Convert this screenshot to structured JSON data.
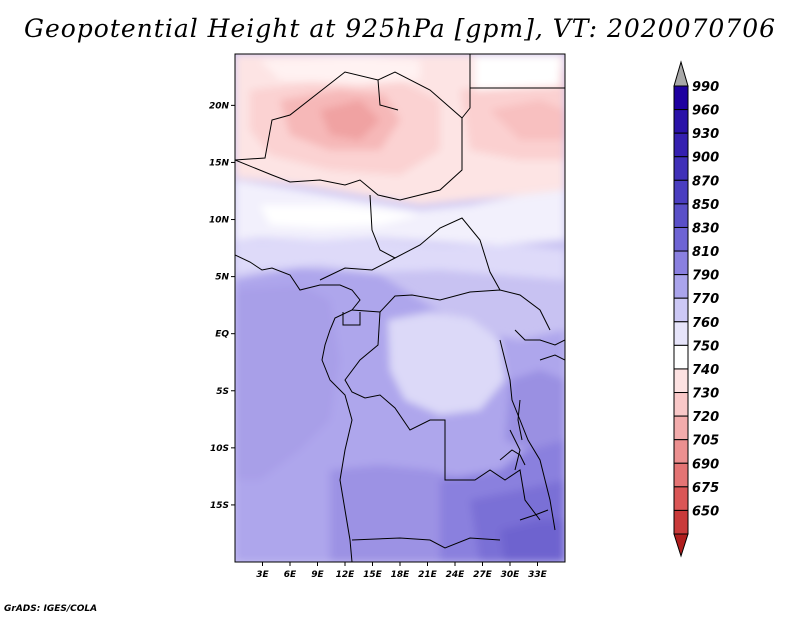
{
  "title": "Geopotential Height at 925hPa [gpm], VT: 2020070706",
  "credit": "GrADS: IGES/COLA",
  "map": {
    "lon_range": [
      0,
      36
    ],
    "lat_range": [
      -20,
      24.5
    ],
    "lat_ticks": [
      {
        "value": 20,
        "label": "20N"
      },
      {
        "value": 15,
        "label": "15N"
      },
      {
        "value": 10,
        "label": "10N"
      },
      {
        "value": 5,
        "label": "5N"
      },
      {
        "value": 0,
        "label": "EQ"
      },
      {
        "value": -5,
        "label": "5S"
      },
      {
        "value": -10,
        "label": "10S"
      },
      {
        "value": -15,
        "label": "15S"
      }
    ],
    "lon_ticks": [
      {
        "value": 3,
        "label": "3E"
      },
      {
        "value": 6,
        "label": "6E"
      },
      {
        "value": 9,
        "label": "9E"
      },
      {
        "value": 12,
        "label": "12E"
      },
      {
        "value": 15,
        "label": "15E"
      },
      {
        "value": 18,
        "label": "18E"
      },
      {
        "value": 21,
        "label": "21E"
      },
      {
        "value": 24,
        "label": "24E"
      },
      {
        "value": 27,
        "label": "27E"
      },
      {
        "value": 30,
        "label": "30E"
      },
      {
        "value": 33,
        "label": "33E"
      }
    ],
    "field_description": "Geopotential height field — light pink (740–760 gpm) over the Sahara/Sahel north of ~12N with darker pink cores (~730) over Niger; white (760–770) band near 10N; pale lavender (770–790) through the Sahel and Congo basin; mid-purple (790–810) over coastal Gulf of Guinea and southern Africa; deepest purple (830–850) over Zambia/Mozambique in the southeast."
  },
  "colorbar": {
    "levels": [
      {
        "label": "990",
        "color": "#1e00a0"
      },
      {
        "label": "960",
        "color": "#2a12a8"
      },
      {
        "label": "930",
        "color": "#3520b0"
      },
      {
        "label": "900",
        "color": "#4030b8"
      },
      {
        "label": "870",
        "color": "#4a3ec0"
      },
      {
        "label": "850",
        "color": "#5a50c8"
      },
      {
        "label": "830",
        "color": "#6e64d4"
      },
      {
        "label": "810",
        "color": "#8a80e0"
      },
      {
        "label": "790",
        "color": "#aaa4ec"
      },
      {
        "label": "770",
        "color": "#ccc8f5"
      },
      {
        "label": "760",
        "color": "#e6e4fa"
      },
      {
        "label": "750",
        "color": "#ffffff"
      },
      {
        "label": "740",
        "color": "#fde2e2"
      },
      {
        "label": "730",
        "color": "#f9c8c8"
      },
      {
        "label": "720",
        "color": "#f3acac"
      },
      {
        "label": "705",
        "color": "#ec9090"
      },
      {
        "label": "690",
        "color": "#e47474"
      },
      {
        "label": "675",
        "color": "#da5656"
      },
      {
        "label": "650",
        "color": "#c93a3a"
      }
    ],
    "bottom_color": "#b01e1e",
    "over_color": "#a8a8a8",
    "under_color": "#b01e1e"
  }
}
